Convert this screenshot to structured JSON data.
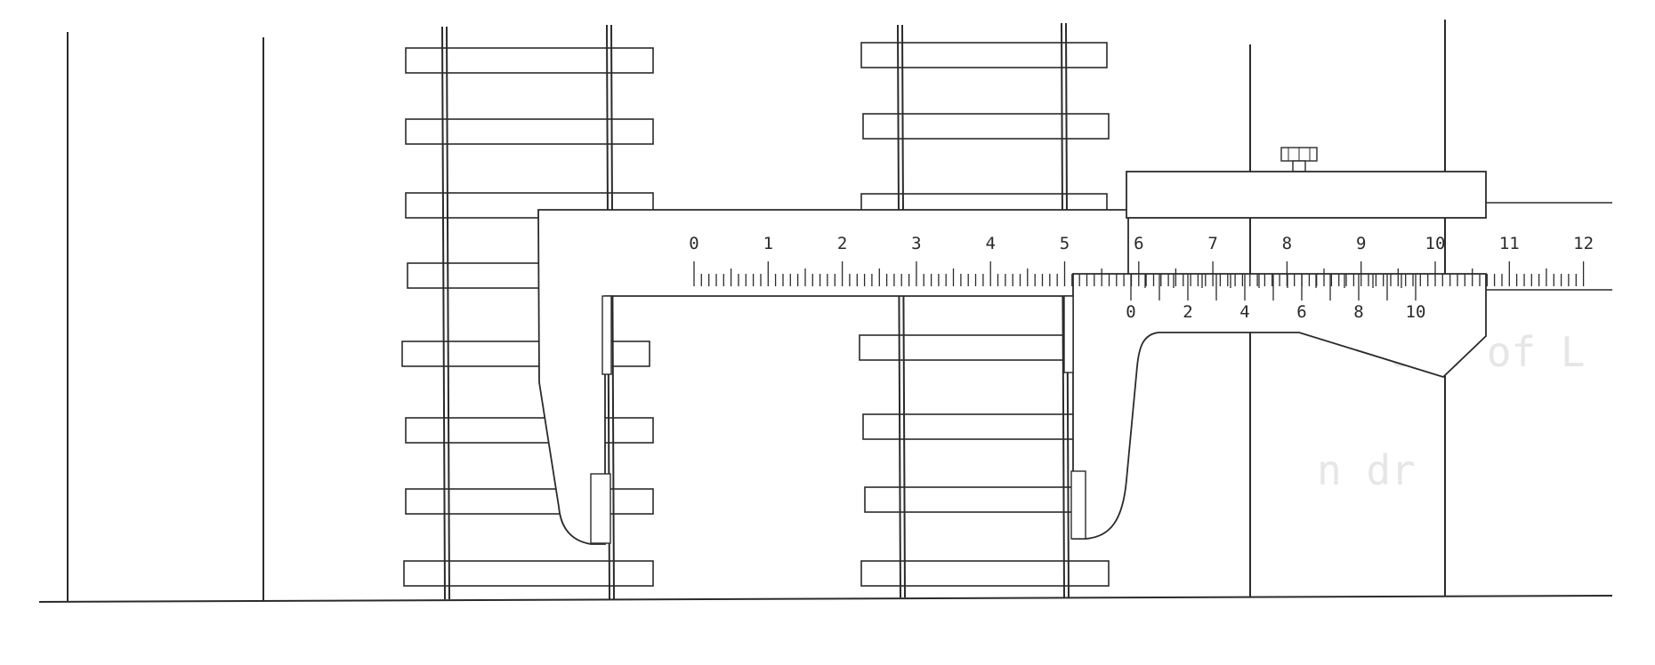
{
  "diagram": {
    "main_scale": {
      "labels": [
        "0",
        "1",
        "2",
        "3",
        "4",
        "5",
        "6",
        "7",
        "8",
        "9",
        "10",
        "11",
        "12"
      ],
      "minor_divisions_per_unit": 10
    },
    "vernier_scale": {
      "labels": [
        "0",
        "2",
        "4",
        "6",
        "8",
        "10"
      ],
      "divisions": 20
    },
    "show_through_text": [
      "eze of L",
      "n dr"
    ],
    "colors": {
      "ink": "#2b2b2b",
      "background": "#ffffff",
      "show_through": "#e6e6e6"
    }
  }
}
